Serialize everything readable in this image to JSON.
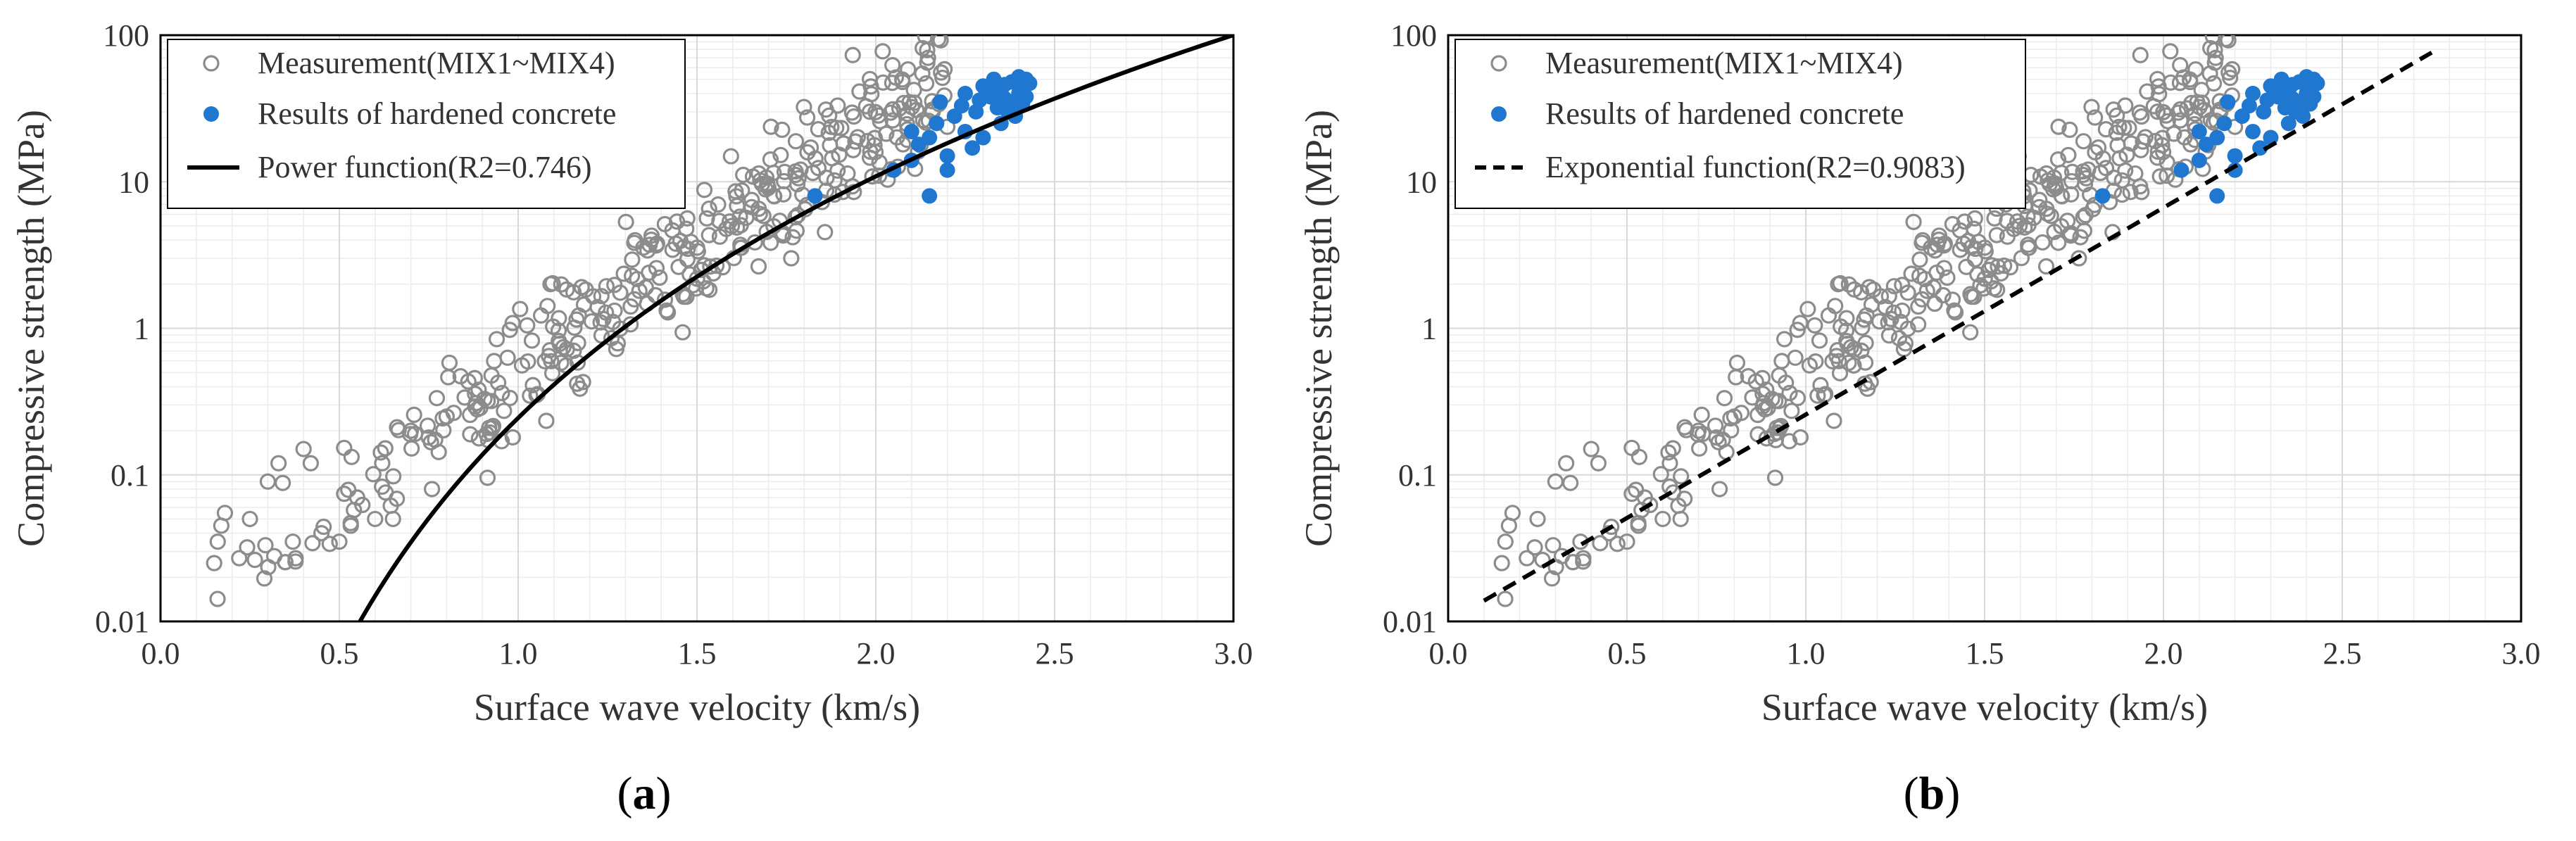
{
  "colors": {
    "measurement": "#8c8c8c",
    "hardened": "#1f77d0",
    "fit": "#000000",
    "grid": "#d9d9d9"
  },
  "captions": [
    "a",
    "b"
  ],
  "chart_data": [
    {
      "type": "scatter",
      "xlabel": "Surface wave velocity (km/s)",
      "ylabel": "Compressive strength (MPa)",
      "xlim": [
        0,
        3.0
      ],
      "ylim": [
        0.01,
        100
      ],
      "yscale": "log",
      "xticks": [
        "0.0",
        "0.5",
        "1.0",
        "1.5",
        "2.0",
        "2.5",
        "3.0"
      ],
      "yticks": [
        "0.01",
        "0.1",
        "1",
        "10",
        "100"
      ],
      "grid": true,
      "legend": {
        "position": "top-left",
        "entries": [
          "Measurement(MIX1~MIX4)",
          "Results of hardened concrete",
          "Power function(R2=0.746)"
        ]
      },
      "series": [
        {
          "name": "Measurement(MIX1~MIX4)",
          "marker": "open-circle",
          "trend": "exponential",
          "a": 0.0087,
          "b": 3.98,
          "x_range": [
            0.15,
            2.2
          ],
          "count": 380,
          "points": [
            [
              0.15,
              0.025
            ],
            [
              0.16,
              0.035
            ],
            [
              0.17,
              0.045
            ],
            [
              0.18,
              0.055
            ],
            [
              0.22,
              0.027
            ],
            [
              0.25,
              0.05
            ],
            [
              0.3,
              0.09
            ],
            [
              0.33,
              0.12
            ],
            [
              0.37,
              0.035
            ],
            [
              0.4,
              0.15
            ],
            [
              0.42,
              0.12
            ],
            [
              0.45,
              0.04
            ],
            [
              0.5,
              0.035
            ],
            [
              0.55,
              0.07
            ],
            [
              0.6,
              0.05
            ],
            [
              0.62,
              0.12
            ],
            [
              0.65,
              0.05
            ],
            [
              0.7,
              0.2
            ],
            [
              0.75,
              0.18
            ],
            [
              0.8,
              0.25
            ]
          ]
        },
        {
          "name": "Results of hardened concrete",
          "marker": "filled-circle",
          "points": [
            [
              1.83,
              8
            ],
            [
              2.05,
              12
            ],
            [
              2.1,
              14
            ],
            [
              2.12,
              18
            ],
            [
              2.15,
              20
            ],
            [
              2.15,
              8
            ],
            [
              2.18,
              35
            ],
            [
              2.2,
              15
            ],
            [
              2.22,
              28
            ],
            [
              2.25,
              40
            ],
            [
              2.25,
              22
            ],
            [
              2.28,
              30
            ],
            [
              2.3,
              45
            ],
            [
              2.3,
              20
            ],
            [
              2.32,
              38
            ],
            [
              2.33,
              50
            ],
            [
              2.35,
              25
            ],
            [
              2.35,
              42
            ],
            [
              2.36,
              46
            ],
            [
              2.37,
              30
            ],
            [
              2.38,
              48
            ],
            [
              2.38,
              35
            ],
            [
              2.4,
              52
            ],
            [
              2.4,
              40
            ],
            [
              2.41,
              44
            ],
            [
              2.42,
              50
            ],
            [
              2.42,
              38
            ],
            [
              2.43,
              47
            ],
            [
              2.2,
              12
            ],
            [
              2.27,
              17
            ],
            [
              2.34,
              32
            ],
            [
              2.39,
              28
            ],
            [
              2.1,
              22
            ],
            [
              2.17,
              25
            ],
            [
              2.24,
              33
            ],
            [
              2.29,
              36
            ],
            [
              2.31,
              41
            ],
            [
              2.33,
              43
            ],
            [
              2.36,
              37
            ],
            [
              2.41,
              34
            ]
          ]
        },
        {
          "name": "Power function(R2=0.746)",
          "line": "solid",
          "function": "power",
          "a": 0.2446,
          "b": 5.475,
          "x_range": [
            0.5,
            3.0
          ]
        }
      ]
    },
    {
      "type": "scatter",
      "xlabel": "Surface wave velocity (km/s)",
      "ylabel": "Compressive strength (MPa)",
      "xlim": [
        0,
        3.0
      ],
      "ylim": [
        0.01,
        100
      ],
      "yscale": "log",
      "xticks": [
        "0.0",
        "0.5",
        "1.0",
        "1.5",
        "2.0",
        "2.5",
        "3.0"
      ],
      "yticks": [
        "0.01",
        "0.1",
        "1",
        "10",
        "100"
      ],
      "grid": true,
      "legend": {
        "position": "top-left",
        "entries": [
          "Measurement(MIX1~MIX4)",
          "Results of hardened concrete",
          "Exponential function(R2=0.9083)"
        ]
      },
      "series": [
        {
          "name": "Measurement(MIX1~MIX4)",
          "marker": "open-circle",
          "trend": "exponential",
          "a": 0.0087,
          "b": 3.98,
          "x_range": [
            0.15,
            2.2
          ],
          "count": 380,
          "points": [
            [
              0.15,
              0.025
            ],
            [
              0.16,
              0.035
            ],
            [
              0.17,
              0.045
            ],
            [
              0.18,
              0.055
            ],
            [
              0.22,
              0.027
            ],
            [
              0.25,
              0.05
            ],
            [
              0.3,
              0.09
            ],
            [
              0.33,
              0.12
            ],
            [
              0.37,
              0.035
            ],
            [
              0.4,
              0.15
            ],
            [
              0.42,
              0.12
            ],
            [
              0.45,
              0.04
            ],
            [
              0.5,
              0.035
            ],
            [
              0.55,
              0.07
            ],
            [
              0.6,
              0.05
            ],
            [
              0.62,
              0.12
            ],
            [
              0.65,
              0.05
            ],
            [
              0.7,
              0.2
            ],
            [
              0.75,
              0.18
            ],
            [
              0.8,
              0.25
            ]
          ]
        },
        {
          "name": "Results of hardened concrete",
          "marker": "filled-circle",
          "points": [
            [
              1.83,
              8
            ],
            [
              2.05,
              12
            ],
            [
              2.1,
              14
            ],
            [
              2.12,
              18
            ],
            [
              2.15,
              20
            ],
            [
              2.15,
              8
            ],
            [
              2.18,
              35
            ],
            [
              2.2,
              15
            ],
            [
              2.22,
              28
            ],
            [
              2.25,
              40
            ],
            [
              2.25,
              22
            ],
            [
              2.28,
              30
            ],
            [
              2.3,
              45
            ],
            [
              2.3,
              20
            ],
            [
              2.32,
              38
            ],
            [
              2.33,
              50
            ],
            [
              2.35,
              25
            ],
            [
              2.35,
              42
            ],
            [
              2.36,
              46
            ],
            [
              2.37,
              30
            ],
            [
              2.38,
              48
            ],
            [
              2.38,
              35
            ],
            [
              2.4,
              52
            ],
            [
              2.4,
              40
            ],
            [
              2.41,
              44
            ],
            [
              2.42,
              50
            ],
            [
              2.42,
              38
            ],
            [
              2.43,
              47
            ],
            [
              2.2,
              12
            ],
            [
              2.27,
              17
            ],
            [
              2.34,
              32
            ],
            [
              2.39,
              28
            ],
            [
              2.1,
              22
            ],
            [
              2.17,
              25
            ],
            [
              2.24,
              33
            ],
            [
              2.29,
              36
            ],
            [
              2.31,
              41
            ],
            [
              2.33,
              43
            ],
            [
              2.36,
              37
            ],
            [
              2.41,
              34
            ]
          ]
        },
        {
          "name": "Exponential function(R2=0.9083)",
          "line": "dashed",
          "function": "exponential",
          "a": 0.01,
          "b": 3.25,
          "x_range": [
            0.1,
            2.75
          ]
        }
      ]
    }
  ]
}
